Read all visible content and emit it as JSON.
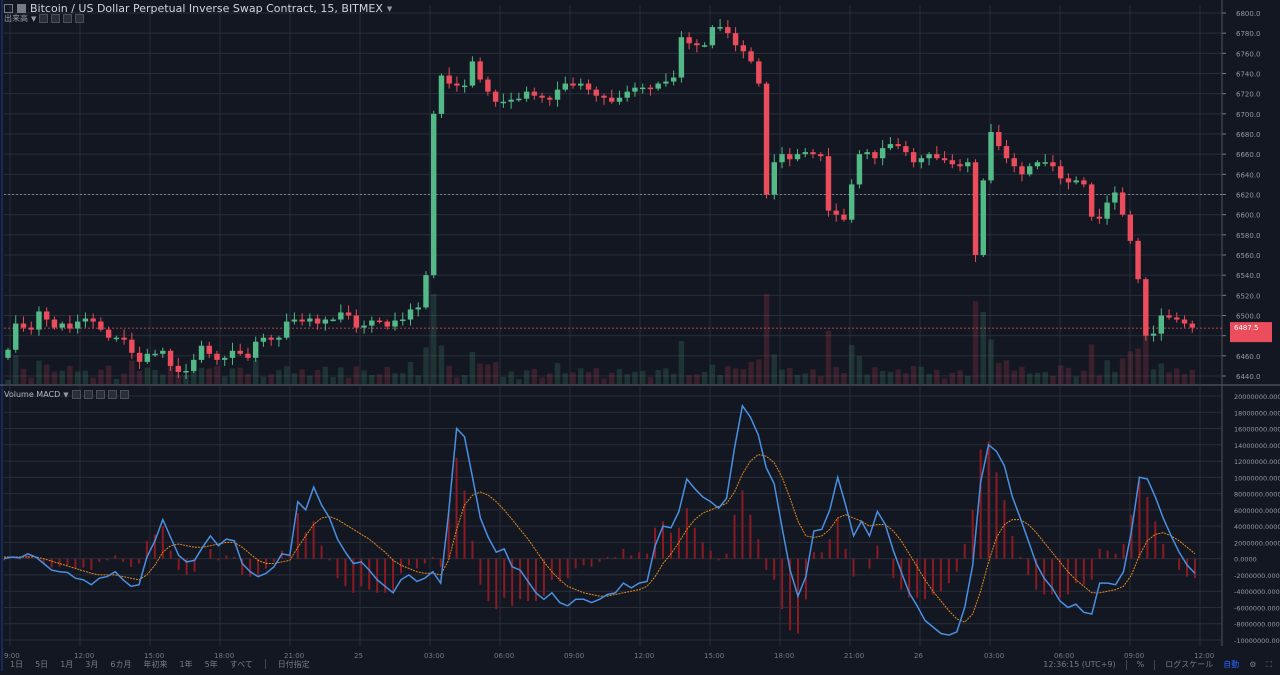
{
  "header": {
    "title": "Bitcoin / US Dollar Perpetual Inverse Swap Contract, 15, BITMEX",
    "sub_label": "出来高"
  },
  "volume_macd_label": "Volume MACD",
  "bottom_bar": {
    "ranges": [
      "1日",
      "5日",
      "1月",
      "3月",
      "6カ月",
      "年初来",
      "1年",
      "5年",
      "すべて"
    ],
    "date_picker": "日付指定",
    "clock": "12:36:15 (UTC+9)",
    "percent": "%",
    "log_scale": "ログスケール",
    "auto": "自動"
  },
  "colors": {
    "background": "#131722",
    "grid": "#2a2e39",
    "up": "#53b987",
    "down": "#eb4d5c",
    "macd_line": "#4a90e2",
    "signal_line": "#e38a1f",
    "histogram": "#8b1a22",
    "current_price": "#eb4d5c"
  },
  "chart_data": [
    {
      "type": "candlestick",
      "title": "Bitcoin / US Dollar Perpetual Inverse Swap Contract, 15, BITMEX",
      "y_axis_labels": [
        "6800.0",
        "6780.0",
        "6760.0",
        "6740.0",
        "6720.0",
        "6700.0",
        "6680.0",
        "6660.0",
        "6640.0",
        "6620.0",
        "6600.0",
        "6580.0",
        "6560.0",
        "6540.0",
        "6520.0",
        "6500.0",
        "6480.0",
        "6460.0",
        "6440.0"
      ],
      "ylim": [
        6440,
        6800
      ],
      "current_price": 6487.5,
      "reference_line": 6620,
      "x_tick_labels": [
        "9:00",
        "12:00",
        "15:00",
        "18:00",
        "21:00",
        "25",
        "03:00",
        "06:00",
        "09:00",
        "12:00",
        "15:00",
        "18:00",
        "21:00",
        "26",
        "03:00",
        "06:00",
        "09:00",
        "12:00"
      ],
      "closes": [
        6466,
        6492,
        6488,
        6486,
        6504,
        6496,
        6488,
        6492,
        6487,
        6494,
        6497,
        6494,
        6486,
        6478,
        6478,
        6476,
        6463,
        6454,
        6462,
        6462,
        6465,
        6450,
        6444,
        6445,
        6456,
        6470,
        6462,
        6456,
        6458,
        6465,
        6462,
        6458,
        6474,
        6478,
        6476,
        6478,
        6494,
        6496,
        6494,
        6497,
        6492,
        6496,
        6496,
        6503,
        6500,
        6488,
        6490,
        6495,
        6494,
        6489,
        6495,
        6496,
        6506,
        6508,
        6540,
        6700,
        6738,
        6730,
        6728,
        6728,
        6752,
        6734,
        6722,
        6712,
        6712,
        6714,
        6715,
        6722,
        6718,
        6716,
        6714,
        6724,
        6730,
        6728,
        6730,
        6724,
        6718,
        6716,
        6712,
        6716,
        6722,
        6726,
        6726,
        6725,
        6730,
        6732,
        6736,
        6776,
        6770,
        6768,
        6768,
        6786,
        6786,
        6780,
        6768,
        6762,
        6752,
        6730,
        6620,
        6652,
        6660,
        6655,
        6660,
        6662,
        6660,
        6658,
        6604,
        6600,
        6595,
        6630,
        6660,
        6662,
        6656,
        6666,
        6670,
        6668,
        6662,
        6652,
        6656,
        6660,
        6656,
        6654,
        6650,
        6648,
        6652,
        6560,
        6634,
        6682,
        6668,
        6656,
        6648,
        6640,
        6648,
        6652,
        6652,
        6648,
        6636,
        6632,
        6634,
        6630,
        6598,
        6596,
        6612,
        6622,
        6600,
        6574,
        6536,
        6480,
        6482,
        6500,
        6498,
        6496,
        6492,
        6488
      ],
      "volume_note": "translucent volume bars at bottom of price pane"
    },
    {
      "type": "line",
      "title": "MACD",
      "y_axis_labels": [
        "20000000.0000",
        "18000000.0000",
        "16000000.0000",
        "14000000.0000",
        "12000000.0000",
        "10000000.0000",
        "8000000.0000",
        "6000000.0000",
        "4000000.0000",
        "2000000.0000",
        "0.0000",
        "-2000000.0000",
        "-4000000.0000",
        "-6000000.0000",
        "-8000000.0000",
        "-10000000.0000"
      ],
      "ylim": [
        -10000000,
        20000000
      ],
      "series": [
        {
          "name": "MACD",
          "values": [
            0.0,
            0.2,
            0.1,
            0.6,
            0.2,
            -0.6,
            -1.4,
            -1.6,
            -1.7,
            -2.4,
            -2.6,
            -3.2,
            -2.4,
            -2.2,
            -1.6,
            -2.6,
            -3.4,
            -3.2,
            0.2,
            2.2,
            4.8,
            2.6,
            0.4,
            -0.4,
            -0.2,
            1.4,
            2.8,
            1.6,
            2.4,
            2.2,
            -0.6,
            -1.6,
            -2.2,
            -1.8,
            -1.0,
            0.6,
            0.4,
            7.0,
            6.0,
            8.8,
            6.6,
            5.0,
            2.4,
            0.8,
            -0.6,
            -0.4,
            -1.4,
            -2.6,
            -3.4,
            -4.2,
            -2.6,
            -2.0,
            -2.8,
            -2.4,
            -1.6,
            -3.0,
            5.6,
            16.0,
            15.0,
            10.0,
            5.0,
            2.6,
            0.8,
            1.2,
            -1.0,
            -1.4,
            -2.8,
            -4.2,
            -5.0,
            -4.2,
            -5.4,
            -5.8,
            -5.0,
            -5.0,
            -5.4,
            -5.0,
            -4.4,
            -4.2,
            -3.0,
            -3.6,
            -3.0,
            -2.8,
            1.6,
            4.0,
            3.8,
            5.8,
            9.8,
            8.6,
            7.6,
            7.0,
            6.2,
            7.4,
            13.6,
            18.8,
            17.4,
            15.2,
            11.2,
            9.2,
            3.8,
            -1.4,
            -4.6,
            -2.2,
            3.4,
            3.6,
            6.0,
            10.0,
            6.6,
            2.8,
            4.6,
            2.8,
            5.8,
            4.2,
            1.0,
            -1.6,
            -4.2,
            -5.8,
            -7.6,
            -8.4,
            -9.2,
            -9.4,
            -9.0,
            -6.0,
            -0.8,
            9.4,
            14.0,
            13.2,
            11.4,
            7.6,
            5.0,
            2.2,
            -0.6,
            -2.4,
            -3.6,
            -5.2,
            -6.0,
            -5.6,
            -6.6,
            -6.8,
            -3.0,
            -3.0,
            -3.2,
            -1.6,
            3.4,
            10.0,
            9.8,
            7.6,
            5.0,
            2.8,
            0.8,
            -0.8,
            -1.8
          ]
        },
        {
          "name": "Signal",
          "values": [
            0.2,
            0.2,
            0.2,
            0.2,
            0.2,
            0.0,
            -0.3,
            -0.6,
            -0.9,
            -1.2,
            -1.5,
            -1.8,
            -2.0,
            -2.0,
            -2.0,
            -2.2,
            -2.4,
            -2.6,
            -2.0,
            -0.8,
            0.8,
            1.6,
            1.8,
            1.6,
            1.4,
            1.4,
            1.6,
            1.8,
            2.0,
            2.0,
            1.4,
            0.6,
            -0.2,
            -0.6,
            -0.6,
            -0.4,
            -0.2,
            1.4,
            2.8,
            4.2,
            5.0,
            5.2,
            4.8,
            4.2,
            3.6,
            3.0,
            2.4,
            1.6,
            0.8,
            -0.2,
            -0.8,
            -1.2,
            -1.6,
            -1.8,
            -1.8,
            -2.0,
            -0.2,
            3.6,
            6.6,
            7.8,
            8.2,
            7.8,
            7.0,
            6.0,
            4.8,
            3.6,
            2.4,
            1.0,
            -0.4,
            -1.6,
            -2.6,
            -3.4,
            -3.8,
            -4.2,
            -4.4,
            -4.6,
            -4.6,
            -4.4,
            -4.2,
            -4.0,
            -3.8,
            -3.4,
            -2.2,
            -0.6,
            0.6,
            2.0,
            3.6,
            4.8,
            5.6,
            6.0,
            6.4,
            6.8,
            8.2,
            10.4,
            12.0,
            12.8,
            12.6,
            11.8,
            10.0,
            7.4,
            4.6,
            2.8,
            2.6,
            2.8,
            3.6,
            5.0,
            5.4,
            5.0,
            4.6,
            4.0,
            4.2,
            4.2,
            3.4,
            2.2,
            0.6,
            -1.0,
            -2.6,
            -4.0,
            -5.2,
            -6.4,
            -7.4,
            -7.8,
            -6.8,
            -4.0,
            -0.4,
            2.6,
            4.2,
            4.8,
            4.8,
            4.2,
            3.2,
            2.0,
            0.8,
            -0.4,
            -1.6,
            -2.6,
            -3.4,
            -4.2,
            -4.2,
            -4.0,
            -3.8,
            -3.4,
            -2.0,
            0.4,
            2.2,
            3.0,
            3.2,
            2.8,
            2.2,
            1.4,
            0.6
          ],
          "unit_note": "values in millions"
        }
      ],
      "histogram_note": "MACD minus Signal, dark red bars"
    }
  ]
}
